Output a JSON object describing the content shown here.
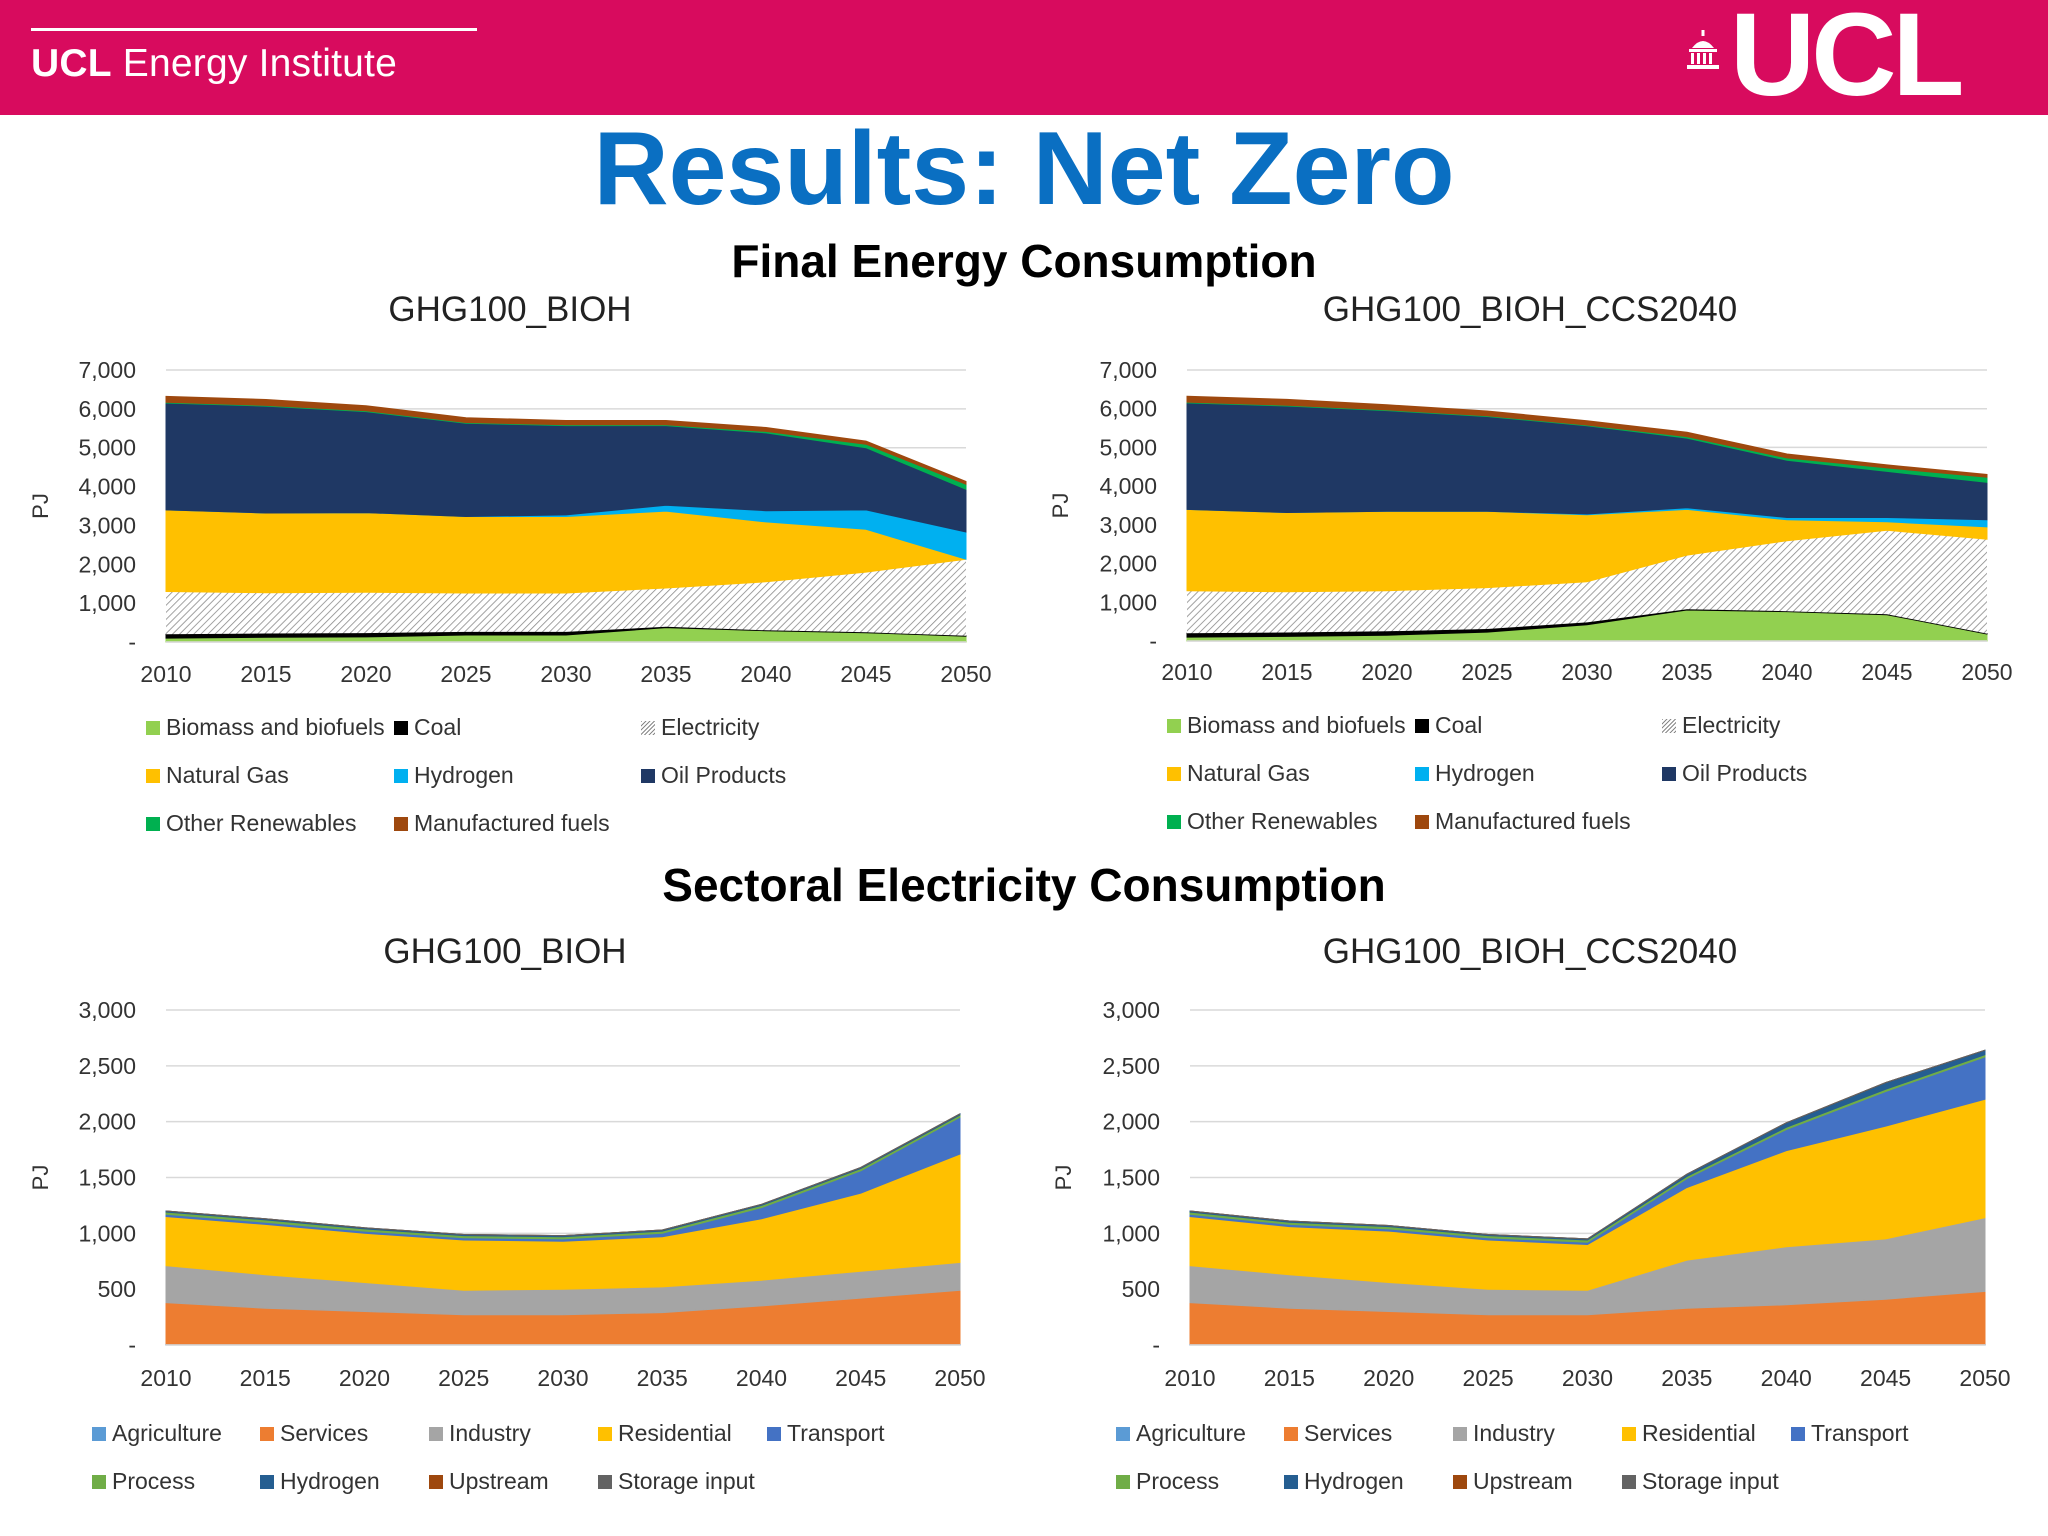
{
  "header": {
    "institute_bold": "UCL",
    "institute_rest": " Energy Institute",
    "logo_text": "UCL",
    "background": "#d80b5e"
  },
  "page_title": "Results: Net Zero",
  "section_titles": [
    "Final Energy Consumption",
    "Sectoral Electricity Consumption"
  ],
  "chart_data": [
    {
      "type": "area",
      "title": "GHG100_BIOH",
      "ylabel": "PJ",
      "ylim": [
        0,
        7000
      ],
      "yticks": [
        {
          "value": 0,
          "label": "-"
        },
        {
          "value": 1000,
          "label": "1,000"
        },
        {
          "value": 2000,
          "label": "2,000"
        },
        {
          "value": 3000,
          "label": "3,000"
        },
        {
          "value": 4000,
          "label": "4,000"
        },
        {
          "value": 5000,
          "label": "5,000"
        },
        {
          "value": 6000,
          "label": "6,000"
        },
        {
          "value": 7000,
          "label": "7,000"
        }
      ],
      "x": [
        "2010",
        "2015",
        "2020",
        "2025",
        "2030",
        "2035",
        "2040",
        "2045",
        "2050"
      ],
      "series": [
        {
          "name": "Biomass and biofuels",
          "color": "#92d050",
          "values": [
            100,
            120,
            130,
            180,
            180,
            370,
            290,
            240,
            150
          ]
        },
        {
          "name": "Coal",
          "color": "#000000",
          "values": [
            100,
            100,
            100,
            80,
            80,
            20,
            10,
            10,
            10
          ]
        },
        {
          "name": "Electricity",
          "color": "#ffffff",
          "hatch": true,
          "values": [
            1100,
            1050,
            1050,
            1000,
            1000,
            1000,
            1250,
            1550,
            1970
          ]
        },
        {
          "name": "Natural Gas",
          "color": "#ffc000",
          "values": [
            2100,
            2050,
            2050,
            1970,
            1970,
            1980,
            1540,
            1100,
            0
          ]
        },
        {
          "name": "Hydrogen",
          "color": "#00b0f0",
          "values": [
            0,
            0,
            0,
            0,
            40,
            150,
            290,
            500,
            700
          ]
        },
        {
          "name": "Oil Products",
          "color": "#1f3864",
          "values": [
            2750,
            2750,
            2600,
            2400,
            2300,
            2050,
            2000,
            1600,
            1100
          ]
        },
        {
          "name": "Other Renewables",
          "color": "#00b050",
          "values": [
            20,
            20,
            20,
            20,
            20,
            20,
            40,
            90,
            130
          ]
        },
        {
          "name": "Manufactured fuels",
          "color": "#9e480e",
          "values": [
            150,
            150,
            130,
            120,
            110,
            110,
            100,
            80,
            70
          ]
        }
      ]
    },
    {
      "type": "area",
      "title": "GHG100_BIOH_CCS2040",
      "ylabel": "PJ",
      "ylim": [
        0,
        7000
      ],
      "yticks": [
        {
          "value": 0,
          "label": "-"
        },
        {
          "value": 1000,
          "label": "1,000"
        },
        {
          "value": 2000,
          "label": "2,000"
        },
        {
          "value": 3000,
          "label": "3,000"
        },
        {
          "value": 4000,
          "label": "4,000"
        },
        {
          "value": 5000,
          "label": "5,000"
        },
        {
          "value": 6000,
          "label": "6,000"
        },
        {
          "value": 7000,
          "label": "7,000"
        }
      ],
      "x": [
        "2010",
        "2015",
        "2020",
        "2025",
        "2030",
        "2035",
        "2040",
        "2045",
        "2050"
      ],
      "series": [
        {
          "name": "Biomass and biofuels",
          "color": "#92d050",
          "values": [
            100,
            120,
            150,
            230,
            420,
            800,
            760,
            680,
            180
          ]
        },
        {
          "name": "Coal",
          "color": "#000000",
          "values": [
            100,
            100,
            100,
            80,
            60,
            20,
            10,
            10,
            10
          ]
        },
        {
          "name": "Electricity",
          "color": "#ffffff",
          "hatch": true,
          "values": [
            1100,
            1050,
            1050,
            1070,
            1050,
            1400,
            1820,
            2170,
            2440
          ]
        },
        {
          "name": "Natural Gas",
          "color": "#ffc000",
          "values": [
            2100,
            2050,
            2050,
            1970,
            1730,
            1180,
            540,
            220,
            320
          ]
        },
        {
          "name": "Hydrogen",
          "color": "#00b0f0",
          "values": [
            0,
            0,
            0,
            0,
            20,
            40,
            60,
            110,
            180
          ]
        },
        {
          "name": "Oil Products",
          "color": "#1f3864",
          "values": [
            2750,
            2750,
            2600,
            2450,
            2280,
            1800,
            1480,
            1190,
            970
          ]
        },
        {
          "name": "Other Renewables",
          "color": "#00b050",
          "values": [
            20,
            20,
            20,
            20,
            20,
            40,
            60,
            90,
            130
          ]
        },
        {
          "name": "Manufactured fuels",
          "color": "#9e480e",
          "values": [
            150,
            150,
            130,
            120,
            110,
            110,
            100,
            80,
            70
          ]
        }
      ]
    },
    {
      "type": "area",
      "title": "GHG100_BIOH",
      "ylabel": "PJ",
      "ylim": [
        0,
        3000
      ],
      "yticks": [
        {
          "value": 0,
          "label": "-"
        },
        {
          "value": 500,
          "label": "500"
        },
        {
          "value": 1000,
          "label": "1,000"
        },
        {
          "value": 1500,
          "label": "1,500"
        },
        {
          "value": 2000,
          "label": "2,000"
        },
        {
          "value": 2500,
          "label": "2,500"
        },
        {
          "value": 3000,
          "label": "3,000"
        }
      ],
      "x": [
        "2010",
        "2015",
        "2020",
        "2025",
        "2030",
        "2035",
        "2040",
        "2045",
        "2050"
      ],
      "series": [
        {
          "name": "Agriculture",
          "color": "#5b9bd5",
          "values": [
            10,
            10,
            10,
            10,
            10,
            10,
            10,
            10,
            10
          ]
        },
        {
          "name": "Services",
          "color": "#ed7d31",
          "values": [
            370,
            320,
            290,
            260,
            260,
            280,
            340,
            410,
            480
          ]
        },
        {
          "name": "Industry",
          "color": "#a5a5a5",
          "values": [
            330,
            300,
            260,
            220,
            230,
            230,
            230,
            240,
            250
          ]
        },
        {
          "name": "Residential",
          "color": "#ffc000",
          "values": [
            440,
            450,
            440,
            450,
            430,
            450,
            550,
            700,
            970
          ]
        },
        {
          "name": "Transport",
          "color": "#4472c4",
          "values": [
            20,
            20,
            20,
            20,
            20,
            30,
            100,
            200,
            330
          ]
        },
        {
          "name": "Process",
          "color": "#70ad47",
          "values": [
            20,
            20,
            20,
            20,
            20,
            20,
            20,
            20,
            20
          ]
        },
        {
          "name": "Hydrogen",
          "color": "#255e91",
          "values": [
            10,
            10,
            10,
            10,
            10,
            10,
            10,
            10,
            10
          ]
        },
        {
          "name": "Upstream",
          "color": "#9e480e",
          "values": [
            0,
            0,
            0,
            0,
            0,
            0,
            0,
            0,
            0
          ]
        },
        {
          "name": "Storage input",
          "color": "#636363",
          "values": [
            0,
            0,
            0,
            0,
            0,
            0,
            0,
            0,
            0
          ]
        }
      ]
    },
    {
      "type": "area",
      "title": "GHG100_BIOH_CCS2040",
      "ylabel": "PJ",
      "ylim": [
        0,
        3000
      ],
      "yticks": [
        {
          "value": 0,
          "label": "-"
        },
        {
          "value": 500,
          "label": "500"
        },
        {
          "value": 1000,
          "label": "1,000"
        },
        {
          "value": 1500,
          "label": "1,500"
        },
        {
          "value": 2000,
          "label": "2,000"
        },
        {
          "value": 2500,
          "label": "2,500"
        },
        {
          "value": 3000,
          "label": "3,000"
        }
      ],
      "x": [
        "2010",
        "2015",
        "2020",
        "2025",
        "2030",
        "2035",
        "2040",
        "2045",
        "2050"
      ],
      "series": [
        {
          "name": "Agriculture",
          "color": "#5b9bd5",
          "values": [
            10,
            10,
            10,
            10,
            10,
            10,
            10,
            10,
            10
          ]
        },
        {
          "name": "Services",
          "color": "#ed7d31",
          "values": [
            370,
            320,
            290,
            260,
            260,
            320,
            350,
            400,
            470
          ]
        },
        {
          "name": "Industry",
          "color": "#a5a5a5",
          "values": [
            330,
            300,
            260,
            230,
            220,
            430,
            520,
            540,
            660
          ]
        },
        {
          "name": "Residential",
          "color": "#ffc000",
          "values": [
            440,
            430,
            460,
            440,
            410,
            650,
            860,
            1010,
            1060
          ]
        },
        {
          "name": "Transport",
          "color": "#4472c4",
          "values": [
            20,
            20,
            20,
            20,
            20,
            80,
            190,
            310,
            380
          ]
        },
        {
          "name": "Process",
          "color": "#70ad47",
          "values": [
            20,
            20,
            20,
            20,
            20,
            20,
            20,
            20,
            20
          ]
        },
        {
          "name": "Hydrogen",
          "color": "#255e91",
          "values": [
            10,
            10,
            10,
            10,
            10,
            20,
            40,
            60,
            40
          ]
        },
        {
          "name": "Upstream",
          "color": "#9e480e",
          "values": [
            0,
            0,
            0,
            0,
            0,
            0,
            0,
            0,
            0
          ]
        },
        {
          "name": "Storage input",
          "color": "#636363",
          "values": [
            0,
            0,
            0,
            0,
            0,
            0,
            0,
            0,
            0
          ]
        }
      ]
    }
  ]
}
